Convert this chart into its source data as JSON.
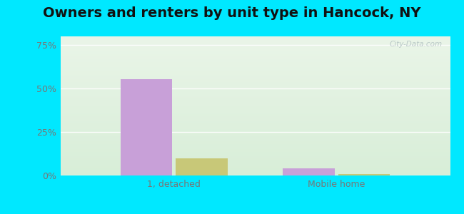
{
  "title": "Owners and renters by unit type in Hancock, NY",
  "categories": [
    "1, detached",
    "Mobile home"
  ],
  "owner_values": [
    55.5,
    4.0
  ],
  "renter_values": [
    10.0,
    0.8
  ],
  "owner_color": "#c8a0d8",
  "renter_color": "#c8c878",
  "yticks": [
    0,
    25,
    50,
    75
  ],
  "ytick_labels": [
    "0%",
    "25%",
    "50%",
    "75%"
  ],
  "ylim": [
    0,
    80
  ],
  "bar_width": 0.32,
  "background_outer": "#00e8ff",
  "watermark": "City-Data.com",
  "title_fontsize": 14,
  "axis_fontsize": 9,
  "legend_fontsize": 9,
  "tick_color": "#777777",
  "grad_top": "#eaf5e8",
  "grad_bottom": "#d8eed8"
}
